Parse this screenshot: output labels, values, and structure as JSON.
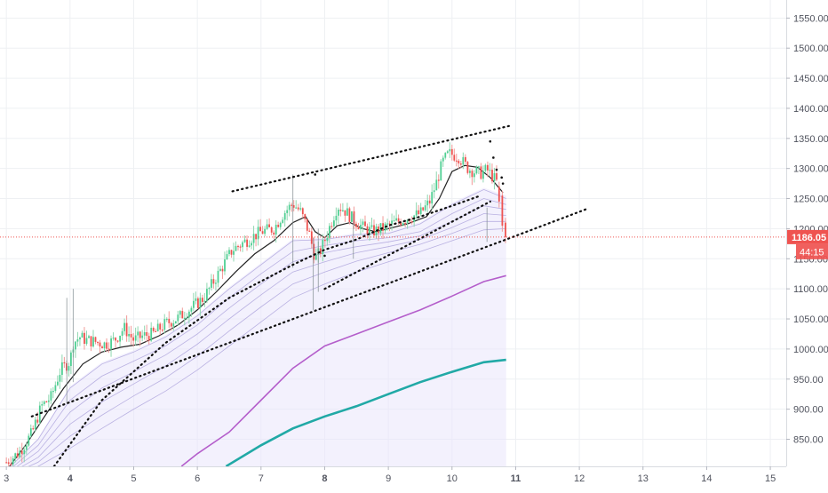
{
  "chart_data": {
    "type": "candlestick",
    "grid": true,
    "x_ticks": [
      "3",
      "4",
      "5",
      "6",
      "7",
      "8",
      "9",
      "10",
      "11",
      "12",
      "13",
      "14",
      "15"
    ],
    "x_ticks_bold": [
      "4",
      "8",
      "11"
    ],
    "y_ticks": [
      "850.00",
      "900.00",
      "950.00",
      "1000.00",
      "1050.00",
      "1100.00",
      "1150.00",
      "1200.00",
      "1250.00",
      "1300.00",
      "1350.00",
      "1400.00",
      "1450.00",
      "1500.00",
      "1550.00"
    ],
    "xlim": [
      2.9,
      15.25
    ],
    "ylim": [
      805,
      1580
    ],
    "last_price": {
      "value": 1186.05,
      "label": "1186.05",
      "countdown": "44:15",
      "color": "#ef5350"
    },
    "colors": {
      "up": "#26a69a",
      "up_light": "#4fcf93",
      "down": "#ef5350",
      "ma_fast": "#222222",
      "ma_purple": "#b45ecb",
      "ma_teal": "#21a9a6",
      "ribbon": "#d9d4f2",
      "ribbon_fill": "#e9e6fb"
    },
    "price_path": [
      [
        3.0,
        812
      ],
      [
        3.2,
        828
      ],
      [
        3.4,
        860
      ],
      [
        3.55,
        905
      ],
      [
        3.7,
        920
      ],
      [
        3.85,
        965
      ],
      [
        4.0,
        980
      ],
      [
        4.05,
        1010
      ],
      [
        4.15,
        1020
      ],
      [
        4.25,
        1015
      ],
      [
        4.4,
        1012
      ],
      [
        4.55,
        1008
      ],
      [
        4.7,
        1015
      ],
      [
        4.85,
        1035
      ],
      [
        5.0,
        1015
      ],
      [
        5.15,
        1022
      ],
      [
        5.3,
        1025
      ],
      [
        5.5,
        1042
      ],
      [
        5.7,
        1052
      ],
      [
        5.9,
        1068
      ],
      [
        6.1,
        1085
      ],
      [
        6.3,
        1120
      ],
      [
        6.55,
        1165
      ],
      [
        6.8,
        1182
      ],
      [
        7.0,
        1195
      ],
      [
        7.2,
        1200
      ],
      [
        7.35,
        1225
      ],
      [
        7.5,
        1242
      ],
      [
        7.62,
        1228
      ],
      [
        7.75,
        1195
      ],
      [
        7.85,
        1150
      ],
      [
        7.92,
        1160
      ],
      [
        8.0,
        1180
      ],
      [
        8.1,
        1210
      ],
      [
        8.2,
        1238
      ],
      [
        8.3,
        1232
      ],
      [
        8.45,
        1215
      ],
      [
        8.6,
        1202
      ],
      [
        8.75,
        1195
      ],
      [
        8.9,
        1200
      ],
      [
        9.1,
        1210
      ],
      [
        9.3,
        1218
      ],
      [
        9.5,
        1225
      ],
      [
        9.65,
        1245
      ],
      [
        9.75,
        1275
      ],
      [
        9.85,
        1310
      ],
      [
        9.95,
        1325
      ],
      [
        10.1,
        1320
      ],
      [
        10.25,
        1300
      ],
      [
        10.35,
        1295
      ],
      [
        10.45,
        1292
      ],
      [
        10.55,
        1298
      ],
      [
        10.65,
        1285
      ],
      [
        10.75,
        1270
      ],
      [
        10.8,
        1238
      ],
      [
        10.85,
        1195
      ]
    ],
    "ma_fast": [
      [
        3.0,
        798
      ],
      [
        3.3,
        840
      ],
      [
        3.6,
        888
      ],
      [
        3.9,
        935
      ],
      [
        4.2,
        975
      ],
      [
        4.5,
        995
      ],
      [
        4.8,
        1003
      ],
      [
        5.1,
        1008
      ],
      [
        5.4,
        1022
      ],
      [
        5.7,
        1040
      ],
      [
        6.0,
        1065
      ],
      [
        6.3,
        1095
      ],
      [
        6.6,
        1128
      ],
      [
        6.9,
        1158
      ],
      [
        7.2,
        1180
      ],
      [
        7.5,
        1210
      ],
      [
        7.7,
        1220
      ],
      [
        7.85,
        1195
      ],
      [
        8.0,
        1185
      ],
      [
        8.2,
        1205
      ],
      [
        8.4,
        1210
      ],
      [
        8.6,
        1200
      ],
      [
        8.8,
        1195
      ],
      [
        9.0,
        1200
      ],
      [
        9.3,
        1208
      ],
      [
        9.6,
        1220
      ],
      [
        9.8,
        1250
      ],
      [
        10.0,
        1295
      ],
      [
        10.2,
        1305
      ],
      [
        10.4,
        1302
      ],
      [
        10.6,
        1285
      ],
      [
        10.8,
        1260
      ]
    ],
    "ribbons": [
      [
        [
          3.0,
          798
        ],
        [
          3.5,
          850
        ],
        [
          4.0,
          935
        ],
        [
          4.5,
          975
        ],
        [
          5.0,
          995
        ],
        [
          5.5,
          1020
        ],
        [
          6.0,
          1055
        ],
        [
          6.5,
          1100
        ],
        [
          7.0,
          1140
        ],
        [
          7.5,
          1180
        ],
        [
          8.0,
          1182
        ],
        [
          8.5,
          1190
        ],
        [
          9.0,
          1192
        ],
        [
          9.5,
          1208
        ],
        [
          10.0,
          1240
        ],
        [
          10.5,
          1265
        ],
        [
          10.85,
          1250
        ]
      ],
      [
        [
          3.0,
          795
        ],
        [
          3.5,
          840
        ],
        [
          4.0,
          915
        ],
        [
          4.5,
          955
        ],
        [
          5.0,
          980
        ],
        [
          5.5,
          1005
        ],
        [
          6.0,
          1040
        ],
        [
          6.5,
          1085
        ],
        [
          7.0,
          1125
        ],
        [
          7.5,
          1162
        ],
        [
          8.0,
          1172
        ],
        [
          8.5,
          1180
        ],
        [
          9.0,
          1185
        ],
        [
          9.5,
          1195
        ],
        [
          10.0,
          1225
        ],
        [
          10.5,
          1250
        ],
        [
          10.85,
          1240
        ]
      ],
      [
        [
          3.0,
          792
        ],
        [
          3.5,
          830
        ],
        [
          4.0,
          895
        ],
        [
          4.5,
          935
        ],
        [
          5.0,
          962
        ],
        [
          5.5,
          990
        ],
        [
          6.0,
          1025
        ],
        [
          6.5,
          1068
        ],
        [
          7.0,
          1108
        ],
        [
          7.5,
          1145
        ],
        [
          8.0,
          1160
        ],
        [
          8.5,
          1170
        ],
        [
          9.0,
          1178
        ],
        [
          9.5,
          1188
        ],
        [
          10.0,
          1212
        ],
        [
          10.5,
          1238
        ],
        [
          10.85,
          1232
        ]
      ],
      [
        [
          3.0,
          790
        ],
        [
          3.5,
          820
        ],
        [
          4.0,
          875
        ],
        [
          4.5,
          912
        ],
        [
          5.0,
          942
        ],
        [
          5.5,
          972
        ],
        [
          6.0,
          1008
        ],
        [
          6.5,
          1050
        ],
        [
          7.0,
          1090
        ],
        [
          7.5,
          1128
        ],
        [
          8.0,
          1145
        ],
        [
          8.5,
          1160
        ],
        [
          9.0,
          1170
        ],
        [
          9.5,
          1182
        ],
        [
          10.0,
          1202
        ],
        [
          10.5,
          1225
        ],
        [
          10.85,
          1222
        ]
      ],
      [
        [
          3.0,
          788
        ],
        [
          3.5,
          812
        ],
        [
          4.0,
          855
        ],
        [
          4.5,
          890
        ],
        [
          5.0,
          922
        ],
        [
          5.5,
          952
        ],
        [
          6.0,
          988
        ],
        [
          6.5,
          1030
        ],
        [
          7.0,
          1070
        ],
        [
          7.5,
          1108
        ],
        [
          8.0,
          1128
        ],
        [
          8.5,
          1146
        ],
        [
          9.0,
          1160
        ],
        [
          9.5,
          1174
        ],
        [
          10.0,
          1192
        ],
        [
          10.5,
          1212
        ],
        [
          10.85,
          1212
        ]
      ],
      [
        [
          3.0,
          785
        ],
        [
          3.5,
          805
        ],
        [
          4.0,
          835
        ],
        [
          4.5,
          868
        ],
        [
          5.0,
          900
        ],
        [
          5.5,
          930
        ],
        [
          6.0,
          965
        ],
        [
          6.5,
          1005
        ],
        [
          7.0,
          1045
        ],
        [
          7.5,
          1085
        ],
        [
          8.0,
          1108
        ],
        [
          8.5,
          1128
        ],
        [
          9.0,
          1145
        ],
        [
          9.5,
          1162
        ],
        [
          10.0,
          1180
        ],
        [
          10.5,
          1198
        ],
        [
          10.85,
          1200
        ]
      ]
    ],
    "ribbon_fill_top": [
      [
        3.0,
        798
      ],
      [
        3.5,
        852
      ],
      [
        4.0,
        938
      ],
      [
        4.5,
        978
      ],
      [
        5.0,
        998
      ],
      [
        5.5,
        1023
      ],
      [
        6.0,
        1058
      ],
      [
        6.5,
        1103
      ],
      [
        7.0,
        1143
      ],
      [
        7.5,
        1183
      ],
      [
        8.0,
        1185
      ],
      [
        8.5,
        1193
      ],
      [
        9.0,
        1195
      ],
      [
        9.5,
        1211
      ],
      [
        10.0,
        1243
      ],
      [
        10.5,
        1268
      ],
      [
        10.85,
        1255
      ]
    ],
    "ma_purple": [
      [
        5.75,
        805
      ],
      [
        6.0,
        826
      ],
      [
        6.5,
        862
      ],
      [
        7.0,
        915
      ],
      [
        7.5,
        968
      ],
      [
        8.0,
        1005
      ],
      [
        8.5,
        1025
      ],
      [
        9.0,
        1045
      ],
      [
        9.5,
        1065
      ],
      [
        10.0,
        1088
      ],
      [
        10.5,
        1112
      ],
      [
        10.85,
        1122
      ]
    ],
    "ma_teal": [
      [
        6.45,
        805
      ],
      [
        7.0,
        840
      ],
      [
        7.5,
        868
      ],
      [
        8.0,
        888
      ],
      [
        8.5,
        905
      ],
      [
        9.0,
        925
      ],
      [
        9.5,
        945
      ],
      [
        10.0,
        962
      ],
      [
        10.5,
        978
      ],
      [
        10.85,
        982
      ]
    ],
    "trendlines": [
      [
        [
          3.4,
          888
        ],
        [
          10.85,
          1182
        ],
        [
          12.1,
          1232
        ]
      ],
      [
        [
          3.75,
          805
        ],
        [
          4.5,
          915
        ],
        [
          5.5,
          1010
        ],
        [
          6.5,
          1085
        ],
        [
          7.5,
          1140
        ],
        [
          8.0,
          1165
        ],
        [
          8.5,
          1182
        ],
        [
          9.0,
          1205
        ],
        [
          9.5,
          1220
        ],
        [
          10.0,
          1238
        ],
        [
          10.45,
          1255
        ]
      ],
      [
        [
          6.55,
          1262
        ],
        [
          10.95,
          1372
        ]
      ],
      [
        [
          8.0,
          1100
        ],
        [
          10.6,
          1245
        ]
      ]
    ],
    "scatter_points": [
      [
        7.85,
        1290
      ],
      [
        8.0,
        1155
      ],
      [
        10.6,
        1345
      ],
      [
        10.65,
        1318
      ],
      [
        10.7,
        1298
      ],
      [
        10.78,
        1285
      ],
      [
        10.8,
        1275
      ]
    ],
    "seed": 7
  }
}
